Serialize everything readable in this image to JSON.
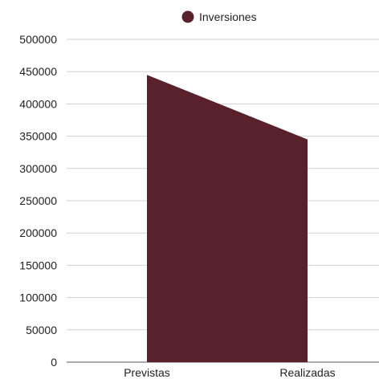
{
  "chart_data": {
    "type": "area",
    "categories": [
      "Previstas",
      "Realizadas"
    ],
    "series": [
      {
        "name": "Inversiones",
        "values": [
          445000,
          345000
        ],
        "color": "#58212b"
      }
    ],
    "title": "",
    "xlabel": "",
    "ylabel": "",
    "ylim": [
      0,
      500000
    ],
    "y_ticks": [
      0,
      50000,
      100000,
      150000,
      200000,
      250000,
      300000,
      350000,
      400000,
      450000,
      500000
    ],
    "grid": true,
    "legend": {
      "position": "top"
    }
  }
}
